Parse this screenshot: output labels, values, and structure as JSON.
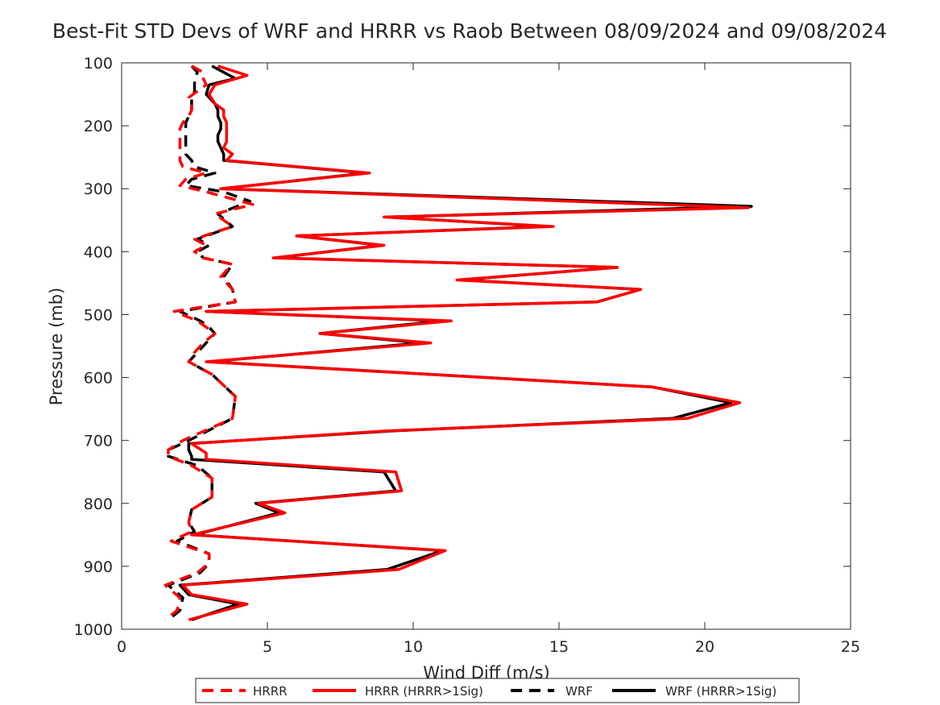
{
  "chart_data": {
    "type": "line",
    "title": "Best-Fit STD Devs of WRF and HRRR vs Raob Between 08/09/2024 and 09/08/2024",
    "xlabel": "Wind Diff (m/s)",
    "ylabel": "Pressure (mb)",
    "xlim": [
      0,
      25
    ],
    "ylim": [
      1000,
      100
    ],
    "y_reversed": true,
    "xticks": [
      "0",
      "5",
      "10",
      "15",
      "20",
      "25"
    ],
    "yticks": [
      "100",
      "200",
      "300",
      "400",
      "500",
      "600",
      "700",
      "800",
      "900",
      "1000"
    ],
    "grid": false,
    "legend": "bottom",
    "colors": {
      "hrrr": "#ff0000",
      "wrf": "#000000"
    },
    "series": [
      {
        "name": "HRRR",
        "style": "dashed",
        "color": "#ff0000",
        "points": [
          [
            2.4,
            105
          ],
          [
            2.8,
            115
          ],
          [
            2.8,
            125
          ],
          [
            2.9,
            135
          ],
          [
            2.6,
            145
          ],
          [
            2.3,
            155
          ],
          [
            2.4,
            165
          ],
          [
            2.4,
            175
          ],
          [
            2.3,
            185
          ],
          [
            2.1,
            195
          ],
          [
            2.0,
            205
          ],
          [
            2.0,
            215
          ],
          [
            2.0,
            225
          ],
          [
            2.0,
            235
          ],
          [
            2.0,
            245
          ],
          [
            2.0,
            255
          ],
          [
            2.1,
            265
          ],
          [
            2.9,
            275
          ],
          [
            2.2,
            285
          ],
          [
            2.0,
            295
          ],
          [
            2.9,
            305
          ],
          [
            4.5,
            325
          ],
          [
            3.2,
            340
          ],
          [
            3.8,
            360
          ],
          [
            2.5,
            380
          ],
          [
            2.9,
            390
          ],
          [
            2.5,
            400
          ],
          [
            2.8,
            410
          ],
          [
            3.8,
            420
          ],
          [
            3.4,
            440
          ],
          [
            3.8,
            460
          ],
          [
            3.9,
            480
          ],
          [
            1.8,
            495
          ],
          [
            2.6,
            510
          ],
          [
            2.9,
            520
          ],
          [
            3.2,
            530
          ],
          [
            2.8,
            545
          ],
          [
            2.5,
            560
          ],
          [
            2.3,
            575
          ],
          [
            3.1,
            595
          ],
          [
            3.9,
            630
          ],
          [
            3.8,
            665
          ],
          [
            2.1,
            700
          ],
          [
            1.6,
            715
          ],
          [
            1.6,
            725
          ],
          [
            2.4,
            740
          ],
          [
            3.1,
            760
          ],
          [
            3.1,
            790
          ],
          [
            2.4,
            810
          ],
          [
            2.3,
            830
          ],
          [
            2.4,
            845
          ],
          [
            1.7,
            860
          ],
          [
            3.0,
            880
          ],
          [
            3.0,
            895
          ],
          [
            2.6,
            910
          ],
          [
            1.5,
            930
          ],
          [
            2.0,
            950
          ],
          [
            1.9,
            970
          ],
          [
            1.5,
            985
          ]
        ]
      },
      {
        "name": "HRRR (HRRR>1Sig)",
        "style": "solid",
        "color": "#ff0000",
        "points": [
          [
            3.3,
            105
          ],
          [
            4.3,
            120
          ],
          [
            3.2,
            135
          ],
          [
            3.0,
            150
          ],
          [
            3.2,
            165
          ],
          [
            3.5,
            175
          ],
          [
            3.5,
            185
          ],
          [
            3.6,
            195
          ],
          [
            3.6,
            205
          ],
          [
            3.6,
            215
          ],
          [
            3.6,
            225
          ],
          [
            3.5,
            235
          ],
          [
            3.8,
            245
          ],
          [
            3.6,
            255
          ],
          [
            8.5,
            275
          ],
          [
            3.4,
            300
          ],
          [
            21.5,
            330
          ],
          [
            9.0,
            345
          ],
          [
            14.8,
            360
          ],
          [
            6.0,
            375
          ],
          [
            9.0,
            390
          ],
          [
            5.2,
            410
          ],
          [
            17.0,
            425
          ],
          [
            11.5,
            445
          ],
          [
            17.8,
            460
          ],
          [
            16.3,
            480
          ],
          [
            2.9,
            495
          ],
          [
            11.3,
            510
          ],
          [
            6.8,
            530
          ],
          [
            10.6,
            545
          ],
          [
            2.9,
            575
          ],
          [
            18.2,
            615
          ],
          [
            21.2,
            640
          ],
          [
            19.4,
            665
          ],
          [
            9.0,
            685
          ],
          [
            2.4,
            705
          ],
          [
            2.9,
            720
          ],
          [
            2.9,
            730
          ],
          [
            9.4,
            750
          ],
          [
            9.6,
            780
          ],
          [
            4.7,
            800
          ],
          [
            5.6,
            815
          ],
          [
            2.4,
            850
          ],
          [
            11.1,
            875
          ],
          [
            9.5,
            905
          ],
          [
            2.1,
            930
          ],
          [
            2.4,
            945
          ],
          [
            4.3,
            960
          ],
          [
            2.3,
            985
          ]
        ]
      },
      {
        "name": "WRF",
        "style": "dashed",
        "color": "#000000",
        "points": [
          [
            2.4,
            105
          ],
          [
            2.6,
            115
          ],
          [
            2.5,
            125
          ],
          [
            2.5,
            135
          ],
          [
            2.5,
            145
          ],
          [
            2.4,
            155
          ],
          [
            2.4,
            165
          ],
          [
            2.4,
            175
          ],
          [
            2.3,
            185
          ],
          [
            2.2,
            195
          ],
          [
            2.2,
            205
          ],
          [
            2.2,
            215
          ],
          [
            2.2,
            225
          ],
          [
            2.2,
            235
          ],
          [
            2.2,
            245
          ],
          [
            2.4,
            255
          ],
          [
            2.5,
            265
          ],
          [
            3.2,
            275
          ],
          [
            2.4,
            285
          ],
          [
            2.2,
            295
          ],
          [
            3.5,
            305
          ],
          [
            4.4,
            320
          ],
          [
            3.3,
            340
          ],
          [
            3.8,
            360
          ],
          [
            2.6,
            380
          ],
          [
            3.0,
            390
          ],
          [
            2.6,
            400
          ],
          [
            2.8,
            410
          ],
          [
            3.8,
            420
          ],
          [
            3.5,
            440
          ],
          [
            3.8,
            460
          ],
          [
            3.9,
            480
          ],
          [
            2.0,
            495
          ],
          [
            2.7,
            510
          ],
          [
            3.0,
            520
          ],
          [
            3.2,
            530
          ],
          [
            2.9,
            545
          ],
          [
            2.6,
            560
          ],
          [
            2.3,
            575
          ],
          [
            3.1,
            595
          ],
          [
            3.9,
            630
          ],
          [
            3.8,
            665
          ],
          [
            2.3,
            700
          ],
          [
            1.6,
            715
          ],
          [
            1.6,
            725
          ],
          [
            2.6,
            740
          ],
          [
            3.1,
            760
          ],
          [
            3.1,
            790
          ],
          [
            2.4,
            810
          ],
          [
            2.3,
            830
          ],
          [
            2.5,
            845
          ],
          [
            1.9,
            860
          ],
          [
            3.0,
            880
          ],
          [
            3.0,
            895
          ],
          [
            2.7,
            910
          ],
          [
            1.6,
            930
          ],
          [
            2.1,
            950
          ],
          [
            2.0,
            970
          ],
          [
            1.6,
            985
          ]
        ]
      },
      {
        "name": "WRF (HRRR>1Sig)",
        "style": "solid",
        "color": "#000000",
        "points": [
          [
            3.1,
            105
          ],
          [
            3.9,
            125
          ],
          [
            3.0,
            135
          ],
          [
            2.9,
            150
          ],
          [
            3.2,
            165
          ],
          [
            3.3,
            175
          ],
          [
            3.3,
            185
          ],
          [
            3.4,
            195
          ],
          [
            3.4,
            205
          ],
          [
            3.3,
            215
          ],
          [
            3.3,
            225
          ],
          [
            3.4,
            235
          ],
          [
            3.5,
            245
          ],
          [
            3.5,
            255
          ],
          [
            8.4,
            275
          ],
          [
            3.4,
            300
          ],
          [
            21.6,
            328
          ],
          [
            9.1,
            345
          ],
          [
            14.6,
            360
          ],
          [
            6.0,
            375
          ],
          [
            8.9,
            390
          ],
          [
            5.3,
            410
          ],
          [
            17.0,
            425
          ],
          [
            11.6,
            445
          ],
          [
            17.8,
            460
          ],
          [
            16.3,
            480
          ],
          [
            2.9,
            495
          ],
          [
            11.0,
            510
          ],
          [
            6.8,
            530
          ],
          [
            10.3,
            545
          ],
          [
            3.0,
            575
          ],
          [
            18.2,
            615
          ],
          [
            20.9,
            640
          ],
          [
            18.9,
            665
          ],
          [
            9.2,
            685
          ],
          [
            2.3,
            705
          ],
          [
            2.3,
            715
          ],
          [
            2.4,
            725
          ],
          [
            2.4,
            730
          ],
          [
            9.0,
            750
          ],
          [
            9.4,
            780
          ],
          [
            4.6,
            800
          ],
          [
            5.4,
            815
          ],
          [
            2.5,
            850
          ],
          [
            11.0,
            875
          ],
          [
            9.1,
            905
          ],
          [
            2.0,
            930
          ],
          [
            2.3,
            945
          ],
          [
            4.0,
            960
          ],
          [
            2.4,
            985
          ]
        ]
      }
    ]
  }
}
